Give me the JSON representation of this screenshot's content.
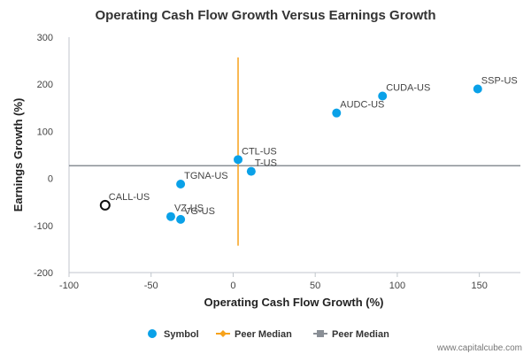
{
  "chart_data": {
    "type": "scatter",
    "title": "Operating Cash Flow Growth Versus Earnings Growth",
    "xlabel": "Operating Cash Flow Growth (%)",
    "ylabel": "Earnings Growth (%)",
    "xlim": [
      -100,
      175
    ],
    "ylim": [
      -200,
      300
    ],
    "xticks": [
      -100,
      -50,
      0,
      50,
      100,
      150
    ],
    "yticks": [
      -200,
      -100,
      0,
      100,
      200,
      300
    ],
    "grid": false,
    "legend_position": "bottom",
    "colors": {
      "symbol": "#0aa1e8",
      "peer_median_x": "#f7a21b",
      "peer_median_y": "#8a8f96",
      "highlight_outline": "#111111"
    },
    "points": [
      {
        "label": "SSP-US",
        "x": 149,
        "y": 190
      },
      {
        "label": "CUDA-US",
        "x": 91,
        "y": 175
      },
      {
        "label": "AUDC-US",
        "x": 63,
        "y": 139
      },
      {
        "label": "CTL-US",
        "x": 3,
        "y": 40
      },
      {
        "label": "T-US",
        "x": 11,
        "y": 15
      },
      {
        "label": "TGNA-US",
        "x": -32,
        "y": -12
      },
      {
        "label": "VZ-US",
        "x": -38,
        "y": -81
      },
      {
        "label": "VG-US",
        "x": -32,
        "y": -87
      }
    ],
    "highlight": {
      "label": "CALL-US",
      "x": -78,
      "y": -57
    },
    "peer_median_x": {
      "x": 3,
      "y_range": [
        -143,
        257
      ]
    },
    "peer_median_y": {
      "y": 27,
      "x_range": [
        -100,
        175
      ]
    },
    "legend": [
      {
        "name": "Symbol",
        "kind": "dot"
      },
      {
        "name": "Peer Median",
        "kind": "orange-line"
      },
      {
        "name": "Peer Median",
        "kind": "gray-line"
      }
    ]
  },
  "credit": "www.capitalcube.com"
}
